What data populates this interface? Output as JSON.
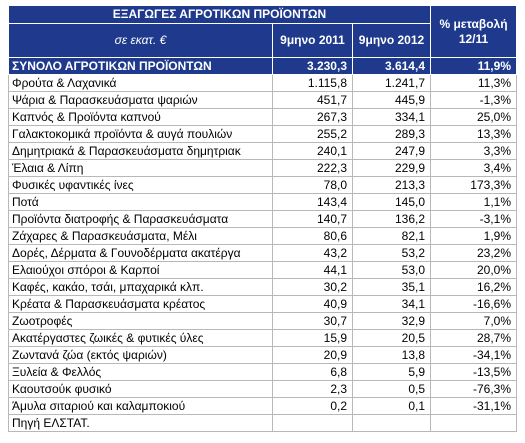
{
  "header": {
    "title": "ΕΞΑΓΩΓΕΣ ΑΓΡΟΤΙΚΩΝ ΠΡΟΪΟΝΤΩΝ",
    "columns": [
      "σε εκατ. €",
      "9μηνο 2011",
      "9μηνο 2012",
      "% μεταβολή 12/11"
    ]
  },
  "table": {
    "total": [
      "ΣΥΝΟΛΟ ΑΓΡΟΤΙΚΩΝ ΠΡΟΪΟΝΤΩΝ",
      "3.230,3",
      "3.614,4",
      "11,9%"
    ],
    "rows": [
      [
        "Φρούτα & Λαχανικά",
        "1.115,8",
        "1.241,7",
        "11,3%"
      ],
      [
        "Ψάρια & Παρασκευάσματα ψαριών",
        "451,7",
        "445,9",
        "-1,3%"
      ],
      [
        "Καπνός & Προϊόντα καπνού",
        "267,3",
        "334,1",
        "25,0%"
      ],
      [
        "Γαλακτοκομικά προϊόντα & αυγά πουλιών",
        "255,2",
        "289,3",
        "13,3%"
      ],
      [
        "Δημητριακά & Παρασκευάσματα δημητριακ",
        "240,1",
        "247,9",
        "3,3%"
      ],
      [
        "Έλαια & Λίπη",
        "222,3",
        "229,9",
        "3,4%"
      ],
      [
        "Φυσικές υφαντικές ίνες",
        "78,0",
        "213,3",
        "173,3%"
      ],
      [
        "Ποτά",
        "143,4",
        "145,0",
        "1,1%"
      ],
      [
        "Προϊόντα διατροφής & Παρασκευάσματα",
        "140,7",
        "136,2",
        "-3,1%"
      ],
      [
        "Ζάχαρες & Παρασκευάσματα, Μέλι",
        "80,6",
        "82,1",
        "1,9%"
      ],
      [
        "Δορές, Δέρματα & Γουνοδέρματα ακατέργα",
        "43,2",
        "53,2",
        "23,2%"
      ],
      [
        "Ελαιούχοι σπόροι & Καρποί",
        "44,1",
        "53,0",
        "20,0%"
      ],
      [
        "Καφές, κακάο, τσάι, μπαχαρικά κλπ.",
        "30,2",
        "35,1",
        "16,2%"
      ],
      [
        "Κρέατα & Παρασκευάσματα κρέατος",
        "40,9",
        "34,1",
        "-16,6%"
      ],
      [
        "Ζωοτροφές",
        "30,7",
        "32,9",
        "7,0%"
      ],
      [
        "Ακατέργαστες ζωικές & φυτικές ύλες",
        "15,9",
        "20,5",
        "28,7%"
      ],
      [
        "Ζωντανά ζώα (εκτός ψαριών)",
        "20,9",
        "13,8",
        "-34,1%"
      ],
      [
        "Ξυλεία & Φελλός",
        "6,8",
        "5,9",
        "-13,5%"
      ],
      [
        "Καουτσούκ φυσικό",
        "2,3",
        "0,5",
        "-76,3%"
      ],
      [
        "Άμυλα σιταριού και καλαμποκιού",
        "0,2",
        "0,1",
        "-31,1%"
      ]
    ],
    "footer": "Πηγή ΕΛΣΤΑΤ."
  }
}
